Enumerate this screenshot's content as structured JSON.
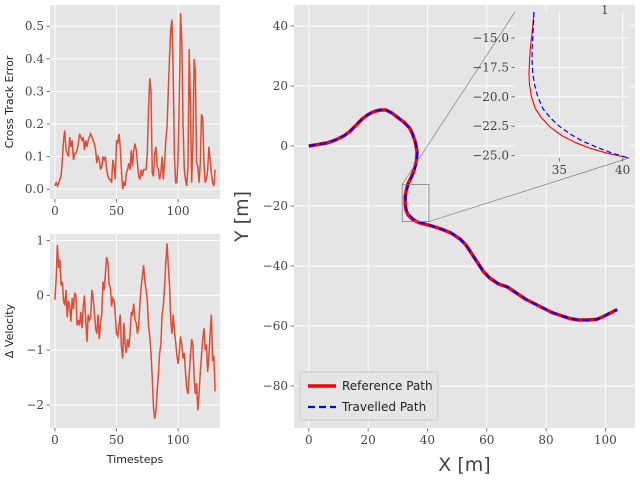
{
  "colors": {
    "panel_bg": "#e5e5e5",
    "grid": "#ffffff",
    "series": "#e24a33",
    "reference": "#ff0000",
    "travelled": "#0000ff",
    "connector": "#808080"
  },
  "chart_data": [
    {
      "id": "cte",
      "type": "line",
      "ylabel": "Cross Track Error",
      "xlabel": "",
      "xlim": [
        -4,
        134
      ],
      "ylim": [
        -0.03,
        0.565
      ],
      "xticks": [
        0,
        50,
        100
      ],
      "yticks": [
        0.0,
        0.1,
        0.2,
        0.3,
        0.4,
        0.5
      ],
      "ytick_labels": [
        "0.0",
        "0.1",
        "0.2",
        "0.3",
        "0.4",
        "0.5"
      ],
      "x": [
        0,
        1,
        2,
        3,
        4,
        5,
        6,
        7,
        8,
        9,
        10,
        11,
        12,
        13,
        14,
        15,
        16,
        17,
        18,
        19,
        20,
        21,
        22,
        23,
        24,
        25,
        26,
        27,
        28,
        29,
        30,
        31,
        32,
        33,
        34,
        35,
        36,
        37,
        38,
        39,
        40,
        41,
        42,
        43,
        44,
        45,
        46,
        47,
        48,
        49,
        50,
        51,
        52,
        53,
        54,
        55,
        56,
        57,
        58,
        59,
        60,
        61,
        62,
        63,
        64,
        65,
        66,
        67,
        68,
        69,
        70,
        71,
        72,
        73,
        74,
        75,
        76,
        77,
        78,
        79,
        80,
        81,
        82,
        83,
        84,
        85,
        86,
        87,
        88,
        89,
        90,
        91,
        92,
        93,
        94,
        95,
        96,
        97,
        98,
        99,
        100,
        101,
        102,
        103,
        104,
        105,
        106,
        107,
        108,
        109,
        110,
        111,
        112,
        113,
        114,
        115,
        116,
        117,
        118,
        119,
        120,
        121,
        122,
        123,
        124,
        125,
        126,
        127,
        128,
        129,
        130
      ],
      "values": [
        0.01,
        0.02,
        0.01,
        0.02,
        0.03,
        0.04,
        0.09,
        0.15,
        0.18,
        0.12,
        0.11,
        0.1,
        0.16,
        0.13,
        0.15,
        0.09,
        0.11,
        0.11,
        0.12,
        0.14,
        0.17,
        0.16,
        0.15,
        0.16,
        0.12,
        0.15,
        0.13,
        0.15,
        0.16,
        0.17,
        0.16,
        0.15,
        0.14,
        0.12,
        0.08,
        0.1,
        0.09,
        0.06,
        0.07,
        0.1,
        0.09,
        0.1,
        0.06,
        0.04,
        0.03,
        0.03,
        0.02,
        0.09,
        0.07,
        0.03,
        0.15,
        0.14,
        0.17,
        0.13,
        0.06,
        0.0,
        0.02,
        0.01,
        0.05,
        0.06,
        0.08,
        0.06,
        0.12,
        0.07,
        0.12,
        0.14,
        0.12,
        0.08,
        0.04,
        0.03,
        0.06,
        0.04,
        0.06,
        0.06,
        0.06,
        0.11,
        0.25,
        0.34,
        0.3,
        0.05,
        0.04,
        0.11,
        0.13,
        0.07,
        0.06,
        0.03,
        0.05,
        0.1,
        0.03,
        0.08,
        0.15,
        0.19,
        0.3,
        0.4,
        0.49,
        0.52,
        0.35,
        0.1,
        0.02,
        0.02,
        0.1,
        0.3,
        0.54,
        0.45,
        0.2,
        0.06,
        0.03,
        0.01,
        0.07,
        0.43,
        0.26,
        0.02,
        0.14,
        0.4,
        0.36,
        0.08,
        0.07,
        0.02,
        0.08,
        0.23,
        0.22,
        0.08,
        0.02,
        0.03,
        0.06,
        0.13,
        0.09,
        0.05,
        0.02,
        0.01,
        0.06
      ]
    },
    {
      "id": "dvel",
      "type": "line",
      "ylabel": "Δ Velocity",
      "xlabel": "Timesteps",
      "xlim": [
        -4,
        134
      ],
      "ylim": [
        -2.42,
        1.12
      ],
      "xticks": [
        0,
        50,
        100
      ],
      "yticks": [
        -2,
        -1,
        0,
        1
      ],
      "ytick_labels": [
        "−2",
        "−1",
        "0",
        "1"
      ],
      "x": [
        0,
        1,
        2,
        3,
        4,
        5,
        6,
        7,
        8,
        9,
        10,
        11,
        12,
        13,
        14,
        15,
        16,
        17,
        18,
        19,
        20,
        21,
        22,
        23,
        24,
        25,
        26,
        27,
        28,
        29,
        30,
        31,
        32,
        33,
        34,
        35,
        36,
        37,
        38,
        39,
        40,
        41,
        42,
        43,
        44,
        45,
        46,
        47,
        48,
        49,
        50,
        51,
        52,
        53,
        54,
        55,
        56,
        57,
        58,
        59,
        60,
        61,
        62,
        63,
        64,
        65,
        66,
        67,
        68,
        69,
        70,
        71,
        72,
        73,
        74,
        75,
        76,
        77,
        78,
        79,
        80,
        81,
        82,
        83,
        84,
        85,
        86,
        87,
        88,
        89,
        90,
        91,
        92,
        93,
        94,
        95,
        96,
        97,
        98,
        99,
        100,
        101,
        102,
        103,
        104,
        105,
        106,
        107,
        108,
        109,
        110,
        111,
        112,
        113,
        114,
        115,
        116,
        117,
        118,
        119,
        120,
        121,
        122,
        123,
        124,
        125,
        126,
        127,
        128,
        129,
        130
      ],
      "values": [
        -0.08,
        0.3,
        0.92,
        0.5,
        0.65,
        0.18,
        0.25,
        -0.1,
        -0.18,
        0.1,
        -0.4,
        -0.1,
        -0.2,
        -0.48,
        -0.05,
        -0.25,
        0.05,
        0.0,
        -0.55,
        -0.45,
        -0.55,
        -0.3,
        -0.6,
        -0.2,
        0.0,
        -0.45,
        -0.85,
        -0.35,
        -0.45,
        -0.4,
        0.1,
        -0.05,
        -0.3,
        -0.6,
        -0.7,
        -0.35,
        -0.8,
        -0.5,
        -0.35,
        0.25,
        0.1,
        0.4,
        0.7,
        0.6,
        0.2,
        0.15,
        -0.2,
        -0.05,
        -0.1,
        -0.35,
        -0.7,
        -0.75,
        -0.55,
        -0.35,
        -0.95,
        -1.15,
        -0.5,
        -0.9,
        -1.05,
        -0.8,
        -0.95,
        -0.7,
        -0.3,
        -0.35,
        -0.15,
        -0.45,
        -0.5,
        -0.7,
        -0.55,
        -0.15,
        0.15,
        0.35,
        0.55,
        0.25,
        0.1,
        -0.1,
        -0.55,
        -0.75,
        -1.05,
        -1.5,
        -2.05,
        -2.25,
        -2.1,
        -1.75,
        -1.45,
        -1.05,
        -0.9,
        -0.35,
        -0.2,
        0.15,
        0.6,
        0.95,
        0.55,
        0.2,
        -0.45,
        -0.7,
        -0.35,
        -0.65,
        -0.85,
        -1.1,
        -1.25,
        -1.05,
        -0.75,
        -0.9,
        -1.15,
        -1.05,
        -1.4,
        -1.7,
        -1.8,
        -1.45,
        -1.1,
        -0.8,
        -0.9,
        -1.5,
        -1.8,
        -1.6,
        -2.1,
        -1.8,
        -1.4,
        -1.1,
        -0.8,
        -0.6,
        -1.0,
        -0.9,
        -1.4,
        -1.1,
        -0.7,
        -0.35,
        -1.2,
        -1.1,
        -1.75
      ]
    },
    {
      "id": "path",
      "type": "line",
      "xlabel": "X [m]",
      "ylabel": "Y [m]",
      "xlim": [
        -5,
        110
      ],
      "ylim": [
        -94,
        47
      ],
      "xticks": [
        0,
        20,
        40,
        60,
        80,
        100
      ],
      "yticks": [
        -80,
        -60,
        -40,
        -20,
        0,
        20,
        40
      ],
      "ytick_labels": [
        "−80",
        "−60",
        "−40",
        "−20",
        "0",
        "20",
        "40"
      ],
      "legend_placement": "lower-left",
      "series": [
        {
          "name": "Reference Path",
          "style": "solid",
          "x": [
            0,
            3,
            6,
            9,
            12,
            14,
            16,
            18,
            20,
            22,
            24,
            26,
            28,
            30,
            32,
            34,
            35,
            36,
            36.5,
            36.3,
            35.5,
            34.5,
            33.5,
            32.8,
            32.5,
            32.5,
            32.8,
            33.5,
            35,
            37,
            39,
            42,
            45,
            48,
            51,
            53,
            55,
            57,
            59,
            61,
            64,
            67,
            70,
            73,
            76,
            79,
            82,
            85,
            88,
            91,
            94,
            97,
            99,
            101,
            103,
            104
          ],
          "y": [
            0,
            0.5,
            1,
            2,
            3.5,
            5,
            7,
            9,
            10.5,
            11.5,
            12,
            12,
            11,
            9.5,
            8,
            6,
            4,
            1,
            -2,
            -5,
            -8,
            -10.5,
            -12.5,
            -15,
            -17,
            -19.5,
            -21.5,
            -23,
            -24.5,
            -25.5,
            -26,
            -26.8,
            -27.8,
            -29,
            -31,
            -33,
            -36,
            -39,
            -42,
            -44,
            -46,
            -47,
            -49,
            -51,
            -52.5,
            -54,
            -55.5,
            -56.5,
            -57.5,
            -58,
            -58,
            -57.8,
            -57,
            -56,
            -55,
            -54.5
          ]
        },
        {
          "name": "Travelled Path",
          "style": "dashed",
          "x": [
            0,
            3,
            6,
            9,
            12,
            14,
            16,
            18,
            20,
            22,
            24,
            26,
            28,
            30,
            32,
            34,
            35,
            36,
            36.6,
            36.4,
            35.6,
            34.6,
            33.6,
            32.9,
            32.6,
            32.6,
            32.9,
            33.7,
            35.2,
            37.2,
            39.2,
            42,
            45,
            48,
            51,
            53,
            55,
            57,
            59,
            61,
            64,
            67,
            70,
            73,
            76,
            79,
            82,
            85,
            88,
            91,
            94,
            97,
            99,
            101,
            103,
            104
          ],
          "y": [
            0,
            0.5,
            1,
            2,
            3.5,
            5,
            7,
            9,
            10.5,
            11.5,
            12,
            12,
            11,
            9.5,
            8,
            6,
            4,
            1,
            -2,
            -5,
            -8,
            -10.5,
            -12.5,
            -15,
            -17,
            -19.5,
            -21.3,
            -22.8,
            -24.3,
            -25.3,
            -25.9,
            -26.8,
            -27.8,
            -29,
            -31,
            -33,
            -36,
            -39,
            -42,
            -44,
            -46,
            -47,
            -49,
            -51,
            -52.5,
            -54,
            -55.5,
            -56.5,
            -57.5,
            -58,
            -58,
            -57.8,
            -57,
            -56,
            -55,
            -54.5
          ]
        }
      ],
      "inset": {
        "xlim": [
          31.5,
          40.5
        ],
        "ylim": [
          -25.2,
          -12.8
        ],
        "xticks": [
          35,
          40
        ],
        "yticks": [
          -25.0,
          -22.5,
          -20.0,
          -17.5,
          -15.0
        ],
        "ytick_labels": [
          "−25.0",
          "−22.5",
          "−20.0",
          "−17.5",
          "−15.0"
        ],
        "clipped_label": "1",
        "reference": {
          "x": [
            33.0,
            32.9,
            32.8,
            32.7,
            32.65,
            32.6,
            32.65,
            32.8,
            33.1,
            33.6,
            34.3,
            35.2,
            36.3,
            37.5,
            38.8,
            40.5
          ],
          "y": [
            -12.8,
            -14,
            -15,
            -16,
            -17,
            -18,
            -19,
            -20,
            -21,
            -21.8,
            -22.6,
            -23.3,
            -23.9,
            -24.4,
            -24.8,
            -25.2
          ]
        },
        "travelled": {
          "x": [
            33.0,
            32.95,
            32.9,
            32.85,
            32.85,
            32.9,
            33.05,
            33.3,
            33.7,
            34.3,
            35.0,
            35.9,
            36.9,
            38.0,
            39.2,
            40.5
          ],
          "y": [
            -12.8,
            -14,
            -15,
            -16,
            -17,
            -18,
            -19,
            -20,
            -21,
            -21.8,
            -22.5,
            -23.2,
            -23.8,
            -24.3,
            -24.8,
            -25.2
          ]
        }
      }
    }
  ]
}
